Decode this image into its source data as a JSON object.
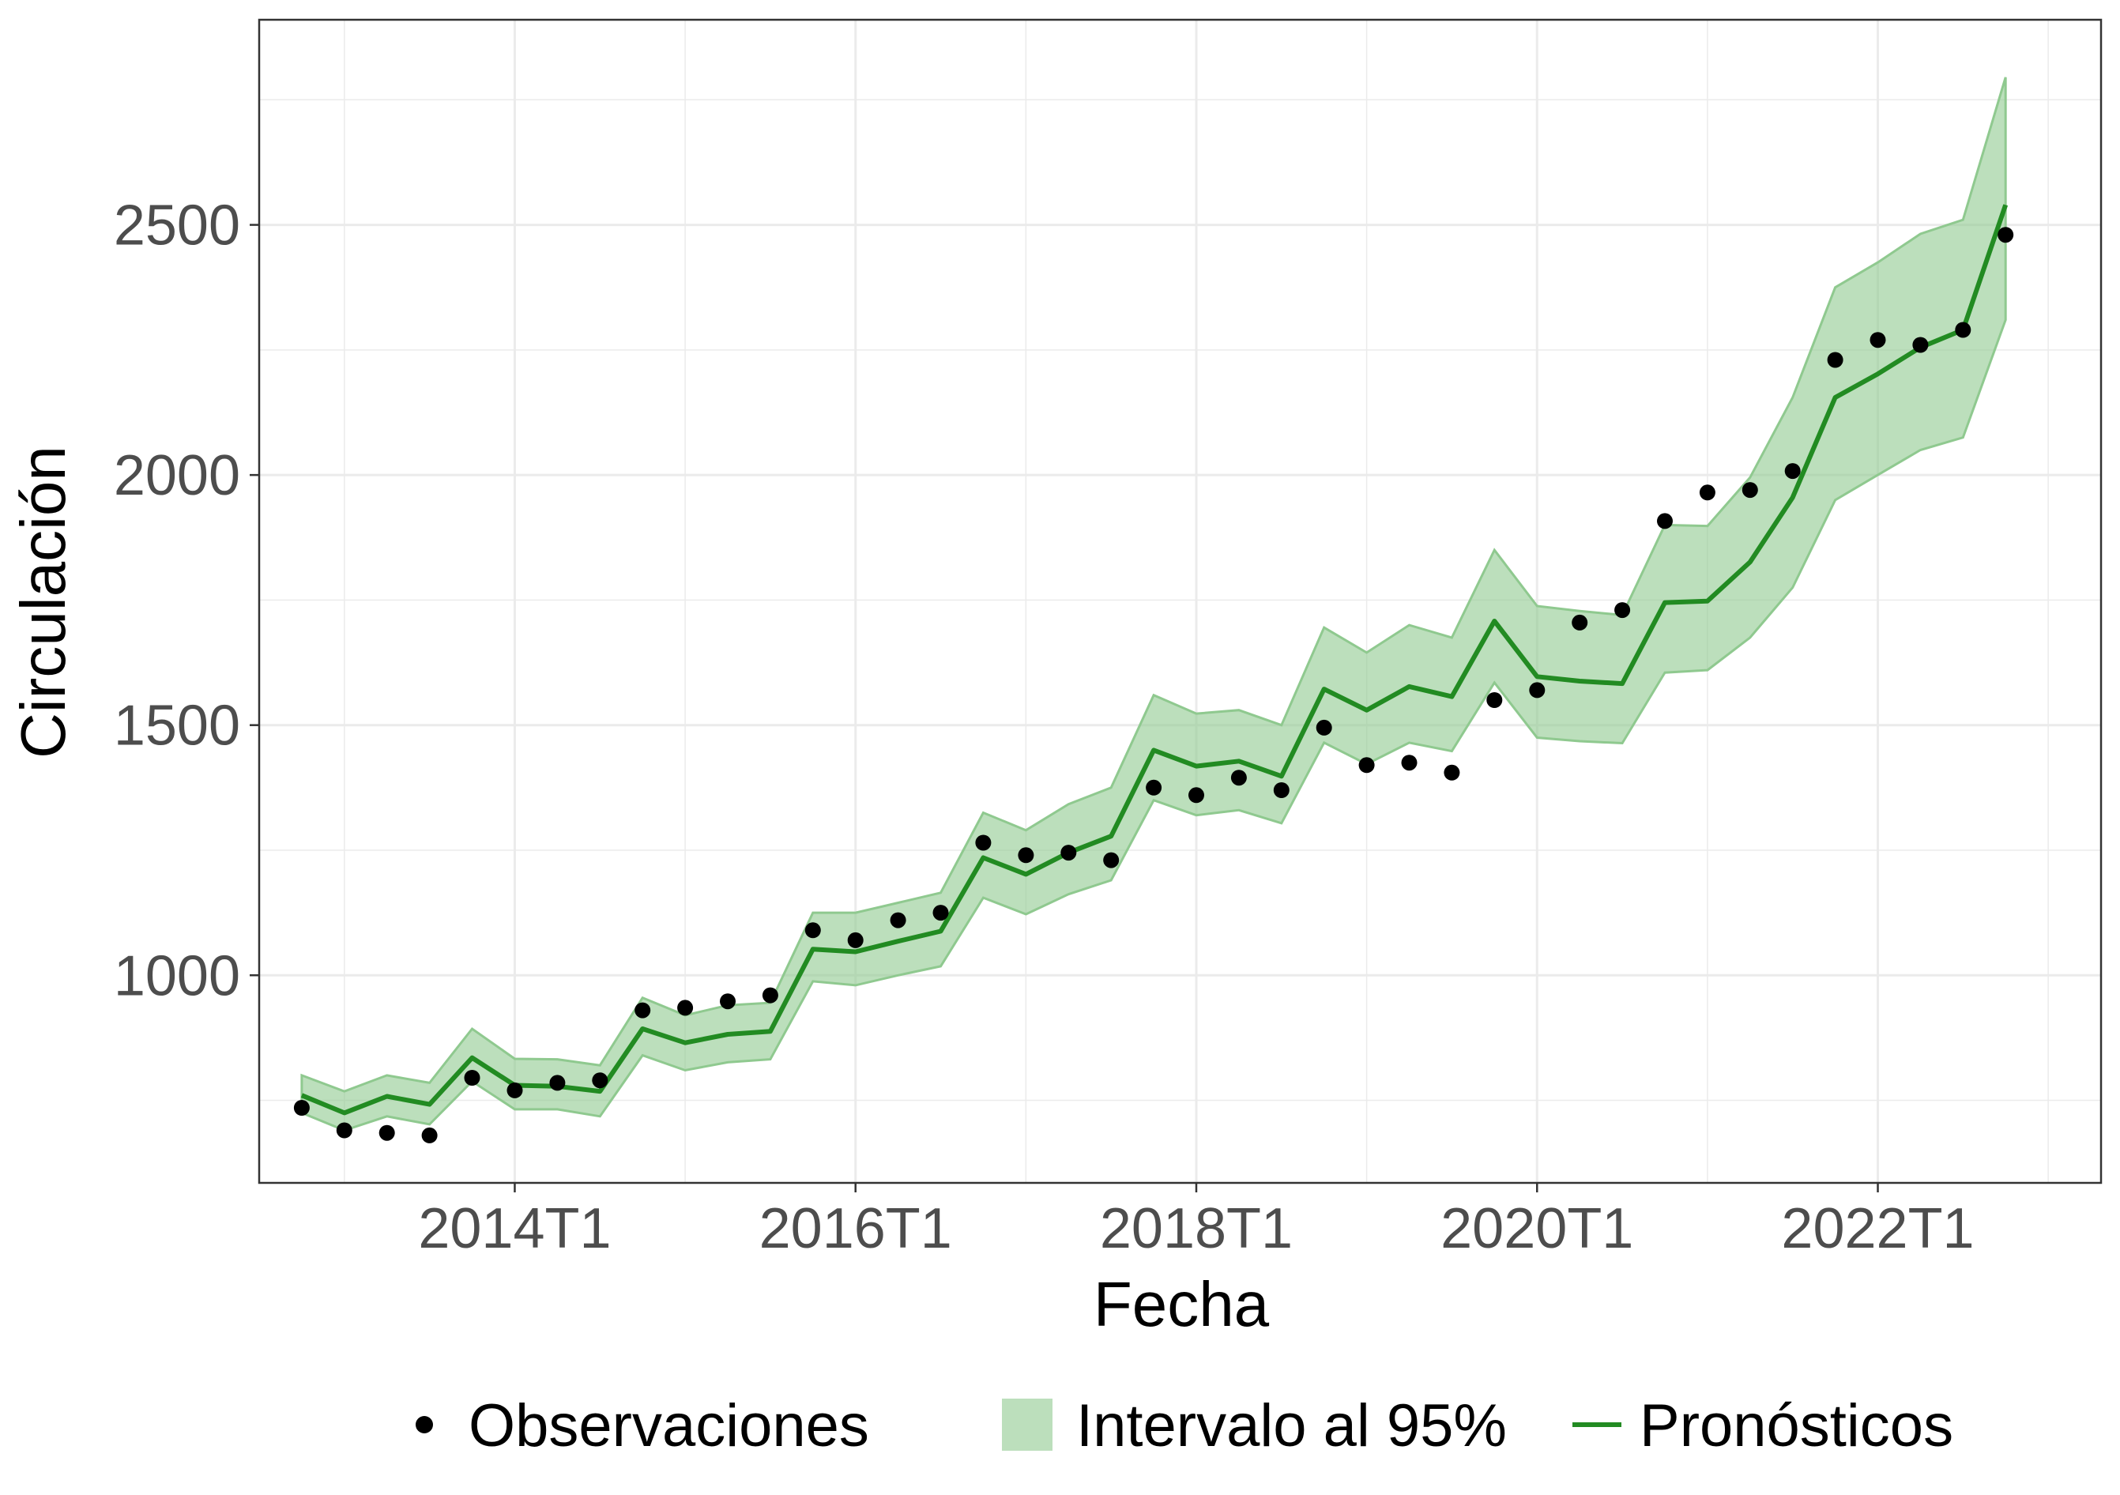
{
  "chart_data": {
    "type": "line",
    "xlabel": "Fecha",
    "ylabel": "Circulación",
    "x_ticks": [
      "2014T1",
      "2016T1",
      "2018T1",
      "2020T1",
      "2022T1"
    ],
    "y_ticks": [
      1000,
      1500,
      2000,
      2500
    ],
    "xlim": [
      2012.5,
      2023.31
    ],
    "ylim": [
      585,
      2910
    ],
    "grid": true,
    "legend_position": "bottom",
    "legend": {
      "observations": "Observaciones",
      "interval": "Intervalo al 95%",
      "forecast": "Pronósticos"
    },
    "colors": {
      "forecast_line": "#228B22",
      "interval_fill": "#8FC98F",
      "observation_point": "#000000",
      "grid": "#EBEBEB",
      "axis_text": "#4D4D4D"
    },
    "x": [
      "2012T4",
      "2013T1",
      "2013T2",
      "2013T3",
      "2013T4",
      "2014T1",
      "2014T2",
      "2014T3",
      "2014T4",
      "2015T1",
      "2015T2",
      "2015T3",
      "2015T4",
      "2016T1",
      "2016T2",
      "2016T3",
      "2016T4",
      "2017T1",
      "2017T2",
      "2017T3",
      "2017T4",
      "2018T1",
      "2018T2",
      "2018T3",
      "2018T4",
      "2019T1",
      "2019T2",
      "2019T3",
      "2019T4",
      "2020T1",
      "2020T2",
      "2020T3",
      "2020T4",
      "2021T1",
      "2021T2",
      "2021T3",
      "2021T4",
      "2022T1",
      "2022T2",
      "2022T3",
      "2022T4"
    ],
    "series": [
      {
        "name": "Observaciones",
        "kind": "points",
        "values": [
          735,
          690,
          685,
          680,
          795,
          770,
          785,
          790,
          930,
          935,
          948,
          960,
          1090,
          1070,
          1110,
          1125,
          1265,
          1240,
          1245,
          1230,
          1375,
          1360,
          1395,
          1370,
          1495,
          1420,
          1425,
          1405,
          1550,
          1570,
          1705,
          1730,
          1908,
          1965,
          1970,
          2008,
          2230,
          2270,
          2260,
          2290,
          2480
        ]
      },
      {
        "name": "Pronósticos",
        "kind": "line",
        "values": [
          760,
          725,
          758,
          742,
          835,
          780,
          778,
          768,
          893,
          865,
          882,
          888,
          1052,
          1047,
          1068,
          1088,
          1235,
          1202,
          1245,
          1278,
          1450,
          1418,
          1428,
          1398,
          1572,
          1530,
          1577,
          1557,
          1708,
          1597,
          1588,
          1583,
          1745,
          1748,
          1826,
          1955,
          2155,
          2202,
          2255,
          2290,
          2540
        ]
      },
      {
        "name": "Intervalo al 95%",
        "kind": "band",
        "lower": [
          725,
          690,
          718,
          702,
          788,
          732,
          732,
          718,
          840,
          810,
          826,
          832,
          988,
          980,
          1000,
          1018,
          1155,
          1122,
          1162,
          1190,
          1350,
          1320,
          1330,
          1304,
          1465,
          1422,
          1465,
          1448,
          1585,
          1475,
          1468,
          1464,
          1605,
          1610,
          1675,
          1775,
          1950,
          2000,
          2050,
          2075,
          2310
        ],
        "upper": [
          800,
          768,
          800,
          785,
          893,
          833,
          832,
          820,
          955,
          920,
          940,
          945,
          1125,
          1125,
          1145,
          1165,
          1325,
          1290,
          1342,
          1375,
          1560,
          1523,
          1530,
          1500,
          1695,
          1645,
          1700,
          1675,
          1850,
          1738,
          1728,
          1720,
          1900,
          1898,
          1995,
          2155,
          2375,
          2425,
          2482,
          2510,
          2795
        ]
      }
    ]
  }
}
